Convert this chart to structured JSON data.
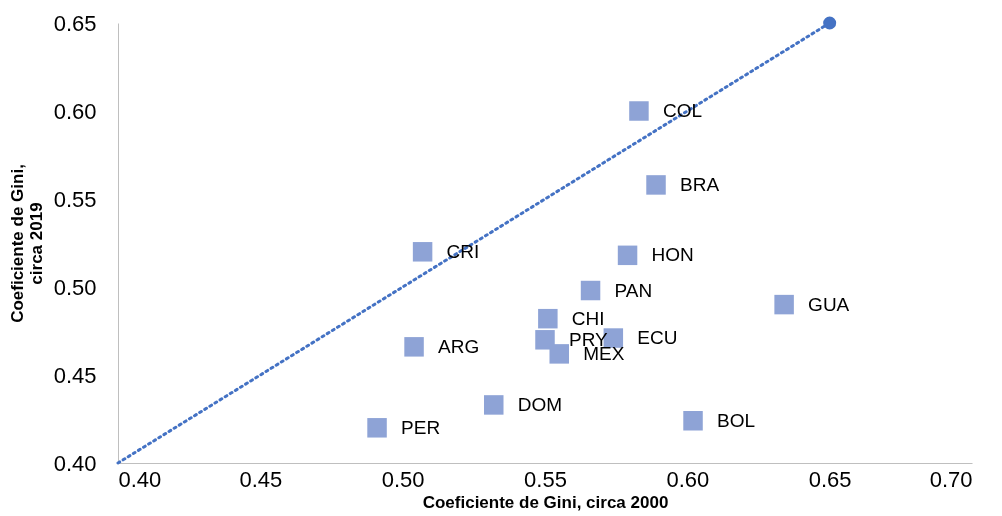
{
  "chart_data": {
    "type": "scatter",
    "xlabel": "Coeficiente de Gini, circa 2000",
    "ylabel": "Coeficiente de Gini, circa 2019",
    "xlim": [
      0.4,
      0.7
    ],
    "xticks": [
      {
        "value": 0.4,
        "label": "0.40"
      },
      {
        "value": 0.45,
        "label": "0.45"
      },
      {
        "value": 0.5,
        "label": "0.50"
      },
      {
        "value": 0.55,
        "label": "0.55"
      },
      {
        "value": 0.6,
        "label": "0.60"
      },
      {
        "value": 0.65,
        "label": "0.65"
      },
      {
        "value": 0.7,
        "label": "0.70"
      }
    ],
    "ylim": [
      0.4,
      0.65
    ],
    "yticks": [
      {
        "value": 0.4,
        "label": "0.40"
      },
      {
        "value": 0.45,
        "label": "0.45"
      },
      {
        "value": 0.5,
        "label": "0.50"
      },
      {
        "value": 0.55,
        "label": "0.55"
      },
      {
        "value": 0.6,
        "label": "0.60"
      },
      {
        "value": 0.65,
        "label": "0.65"
      }
    ],
    "grid": false,
    "legend": false,
    "series": [
      {
        "type": "line",
        "color": "#4472c4",
        "line_style": "dotted",
        "marker": "none",
        "x": [
          0.4,
          0.65
        ],
        "values": [
          0.4,
          0.65
        ]
      },
      {
        "type": "scatter",
        "color": "#4472c4",
        "marker": "circle",
        "x": [
          0.65
        ],
        "values": [
          0.65
        ]
      },
      {
        "type": "scatter",
        "color": "#8ea3d6",
        "marker": "square",
        "x": [
          0.583,
          0.589,
          0.507,
          0.579,
          0.566,
          0.634,
          0.551,
          0.574,
          0.55,
          0.555,
          0.504,
          0.532,
          0.602,
          0.491
        ],
        "values": [
          0.6,
          0.558,
          0.52,
          0.518,
          0.498,
          0.49,
          0.482,
          0.471,
          0.47,
          0.462,
          0.466,
          0.433,
          0.424,
          0.42
        ]
      }
    ],
    "annotations": [
      {
        "text": "COL",
        "x": 0.583,
        "y": 0.6
      },
      {
        "text": "BRA",
        "x": 0.589,
        "y": 0.558
      },
      {
        "text": "CRI",
        "x": 0.507,
        "y": 0.52
      },
      {
        "text": "HON",
        "x": 0.579,
        "y": 0.518
      },
      {
        "text": "PAN",
        "x": 0.566,
        "y": 0.498
      },
      {
        "text": "GUA",
        "x": 0.634,
        "y": 0.49
      },
      {
        "text": "CHI",
        "x": 0.551,
        "y": 0.482
      },
      {
        "text": "ECU",
        "x": 0.574,
        "y": 0.471
      },
      {
        "text": "PRY",
        "x": 0.55,
        "y": 0.47
      },
      {
        "text": "MEX",
        "x": 0.555,
        "y": 0.462
      },
      {
        "text": "ARG",
        "x": 0.504,
        "y": 0.466
      },
      {
        "text": "DOM",
        "x": 0.532,
        "y": 0.433
      },
      {
        "text": "BOL",
        "x": 0.602,
        "y": 0.424
      },
      {
        "text": "PER",
        "x": 0.491,
        "y": 0.42
      }
    ]
  }
}
